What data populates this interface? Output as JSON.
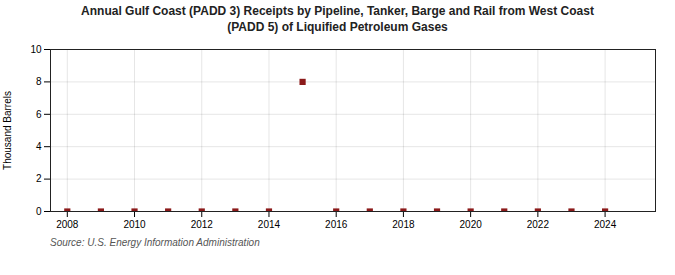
{
  "chart_data": {
    "type": "scatter",
    "title": "Annual Gulf Coast (PADD 3) Receipts by Pipeline, Tanker, Barge and Rail from West Coast\n(PADD 5) of Liquified Petroleum Gases",
    "ylabel": "Thousand Barrels",
    "annotations": [
      "Source: U.S. Energy Information Administration"
    ],
    "x": [
      2008,
      2009,
      2010,
      2011,
      2012,
      2013,
      2014,
      2015,
      2016,
      2017,
      2018,
      2019,
      2020,
      2021,
      2022,
      2023,
      2024
    ],
    "values": [
      0,
      0,
      0,
      0,
      0,
      0,
      0,
      8,
      0,
      0,
      0,
      0,
      0,
      0,
      0,
      0,
      0
    ],
    "color": "#8b1a1a",
    "marker": "square",
    "xlim": [
      2007.5,
      2025.5
    ],
    "xticks": [
      2008,
      2010,
      2012,
      2014,
      2016,
      2018,
      2020,
      2022,
      2024
    ],
    "ylim": [
      0,
      10
    ],
    "yticks": [
      0,
      2,
      4,
      6,
      8,
      10
    ],
    "grid": true
  }
}
